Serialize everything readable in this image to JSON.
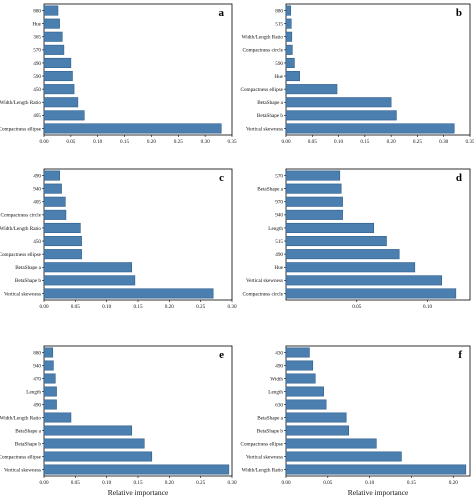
{
  "chart_data": [
    {
      "type": "bar",
      "orientation": "horizontal",
      "panel_label": "a",
      "categories": [
        "Compactness ellipse",
        "405",
        "Width/Length Ratio",
        "450",
        "590",
        "490",
        "570",
        "365",
        "Hue",
        "880"
      ],
      "values": [
        0.33,
        0.075,
        0.063,
        0.056,
        0.053,
        0.05,
        0.037,
        0.034,
        0.029,
        0.026
      ],
      "xlim": [
        0,
        0.35
      ],
      "xticks": [
        "0.00",
        "0.05",
        "0.10",
        "0.15",
        "0.20",
        "0.25",
        "0.30",
        "0.35"
      ],
      "xlabel": ""
    },
    {
      "type": "bar",
      "orientation": "horizontal",
      "panel_label": "b",
      "categories": [
        "Vertical skewness",
        "BetaShape b",
        "BetaShape a",
        "Compactness ellipse",
        "Hue",
        "590",
        "Compactness circle",
        "Width/Length Ratio",
        "515",
        "880"
      ],
      "values": [
        0.32,
        0.21,
        0.2,
        0.097,
        0.026,
        0.016,
        0.012,
        0.011,
        0.01,
        0.009
      ],
      "xlim": [
        0,
        0.35
      ],
      "xticks": [
        "0.00",
        "0.05",
        "0.10",
        "0.15",
        "0.20",
        "0.25",
        "0.30",
        "0.35"
      ],
      "xlabel": ""
    },
    {
      "type": "bar",
      "orientation": "horizontal",
      "panel_label": "c",
      "categories": [
        "Vertical skewness",
        "BetaShape b",
        "BetaShape a",
        "Compactness ellipse",
        "450",
        "Width/Length Ratio",
        "Compactness circle",
        "405",
        "940",
        "490"
      ],
      "values": [
        0.27,
        0.145,
        0.14,
        0.06,
        0.06,
        0.058,
        0.035,
        0.034,
        0.028,
        0.025
      ],
      "xlim": [
        0,
        0.3
      ],
      "xticks": [
        "0.00",
        "0.05",
        "0.10",
        "0.15",
        "0.20",
        "0.25",
        "0.30"
      ],
      "xlabel": ""
    },
    {
      "type": "bar",
      "orientation": "horizontal",
      "panel_label": "d",
      "categories": [
        "Compactness circle",
        "Vertical skewness",
        "Hue",
        "490",
        "515",
        "Length",
        "940",
        "970",
        "BetaShape a",
        "570"
      ],
      "values": [
        0.12,
        0.11,
        0.091,
        0.08,
        0.071,
        0.062,
        0.04,
        0.04,
        0.039,
        0.038
      ],
      "xlim": [
        0,
        0.13
      ],
      "xticks": [
        "0.05",
        "0.10"
      ],
      "xlabel": ""
    },
    {
      "type": "bar",
      "orientation": "horizontal",
      "panel_label": "e",
      "categories": [
        "Vertical skewness",
        "Compactness ellipse",
        "BetaShape b",
        "BetaShape a",
        "Width/Length Ratio",
        "490",
        "Length",
        "470",
        "940",
        "880"
      ],
      "values": [
        0.295,
        0.172,
        0.16,
        0.14,
        0.043,
        0.02,
        0.02,
        0.018,
        0.015,
        0.014
      ],
      "xlim": [
        0,
        0.3
      ],
      "xticks": [
        "0.00",
        "0.05",
        "0.10",
        "0.15",
        "0.20",
        "0.25",
        "0.30"
      ],
      "xlabel": "Relative importance"
    },
    {
      "type": "bar",
      "orientation": "horizontal",
      "panel_label": "f",
      "categories": [
        "Width/Length Ratio",
        "Vertical skewness",
        "Compactness ellipse",
        "BetaShape b",
        "BetaShape a",
        "630",
        "Length",
        "Width",
        "490",
        "430"
      ],
      "values": [
        0.215,
        0.138,
        0.108,
        0.075,
        0.072,
        0.048,
        0.045,
        0.035,
        0.032,
        0.028
      ],
      "xlim": [
        0,
        0.22
      ],
      "xticks": [
        "0.00",
        "0.05",
        "0.10",
        "0.15",
        "0.20"
      ],
      "xlabel": "Relative importance"
    }
  ],
  "colors": {
    "bar": "#4a7fb0",
    "bar_edge": "#2f5f8a"
  }
}
